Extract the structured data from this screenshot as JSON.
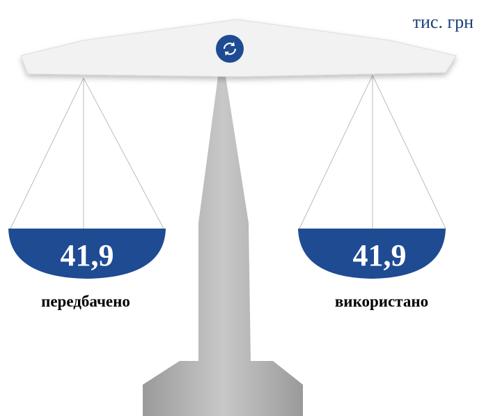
{
  "unit": "тис. грн",
  "pans": [
    {
      "value": "41,9",
      "label": "передбачено"
    },
    {
      "value": "41,9",
      "label": "використано"
    }
  ]
}
